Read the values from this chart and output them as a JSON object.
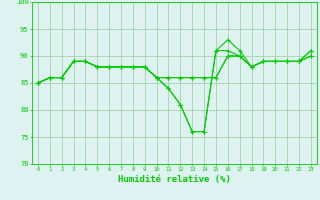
{
  "x": [
    0,
    1,
    2,
    3,
    4,
    5,
    6,
    7,
    8,
    9,
    10,
    11,
    12,
    13,
    14,
    15,
    16,
    17,
    18,
    19,
    20,
    21,
    22,
    23
  ],
  "line1": [
    85,
    86,
    86,
    89,
    89,
    88,
    88,
    88,
    88,
    88,
    86,
    84,
    81,
    76,
    76,
    91,
    93,
    91,
    88,
    89,
    89,
    89,
    89,
    91
  ],
  "line2": [
    85,
    86,
    86,
    89,
    89,
    88,
    88,
    88,
    88,
    88,
    86,
    84,
    81,
    76,
    76,
    91,
    91,
    90,
    88,
    89,
    89,
    89,
    89,
    91
  ],
  "line3": [
    85,
    86,
    86,
    89,
    89,
    88,
    88,
    88,
    88,
    88,
    86,
    86,
    86,
    86,
    86,
    86,
    90,
    90,
    88,
    89,
    89,
    89,
    89,
    90
  ],
  "line4": [
    85,
    86,
    86,
    89,
    89,
    88,
    88,
    88,
    88,
    88,
    86,
    86,
    86,
    86,
    86,
    86,
    90,
    90,
    88,
    89,
    89,
    89,
    89,
    90
  ],
  "xlabel": "Humidité relative (%)",
  "ylim": [
    70,
    100
  ],
  "yticks": [
    70,
    75,
    80,
    85,
    90,
    95,
    100
  ],
  "xticks": [
    0,
    1,
    2,
    3,
    4,
    5,
    6,
    7,
    8,
    9,
    10,
    11,
    12,
    13,
    14,
    15,
    16,
    17,
    18,
    19,
    20,
    21,
    22,
    23
  ],
  "line_color": "#00cc00",
  "bg_color": "#dff2f2",
  "grid_color": "#99cc99",
  "spine_color": "#00cc00"
}
